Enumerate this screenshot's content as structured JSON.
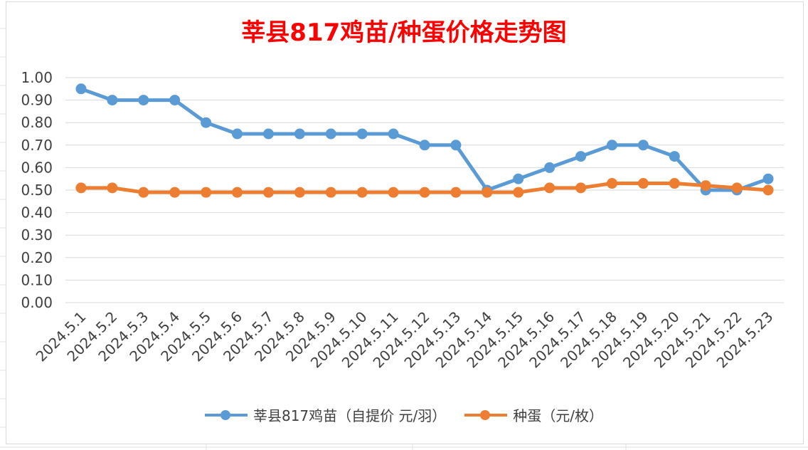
{
  "chart_data": {
    "type": "line",
    "title": "莘县817鸡苗/种蛋价格走势图",
    "xlabel": "",
    "ylabel": "",
    "ylim": [
      0,
      1.0
    ],
    "yticks": [
      "0.00",
      "0.10",
      "0.20",
      "0.30",
      "0.40",
      "0.50",
      "0.60",
      "0.70",
      "0.80",
      "0.90",
      "1.00"
    ],
    "categories": [
      "2024.5.1",
      "2024.5.2",
      "2024.5.3",
      "2024.5.4",
      "2024.5.5",
      "2024.5.6",
      "2024.5.7",
      "2024.5.8",
      "2024.5.9",
      "2024.5.10",
      "2024.5.11",
      "2024.5.12",
      "2024.5.13",
      "2024.5.14",
      "2024.5.15",
      "2024.5.16",
      "2024.5.17",
      "2024.5.18",
      "2024.5.19",
      "2024.5.20",
      "2024.5.21",
      "2024.5.22",
      "2024.5.23"
    ],
    "series": [
      {
        "name": "莘县817鸡苗（自提价 元/羽）",
        "color": "#5b9bd5",
        "values": [
          0.95,
          0.9,
          0.9,
          0.9,
          0.8,
          0.75,
          0.75,
          0.75,
          0.75,
          0.75,
          0.75,
          0.7,
          0.7,
          0.5,
          0.55,
          0.6,
          0.65,
          0.7,
          0.7,
          0.65,
          0.5,
          0.5,
          0.55
        ]
      },
      {
        "name": "种蛋（元/枚）",
        "color": "#ed7d31",
        "values": [
          0.51,
          0.51,
          0.49,
          0.49,
          0.49,
          0.49,
          0.49,
          0.49,
          0.49,
          0.49,
          0.49,
          0.49,
          0.49,
          0.49,
          0.49,
          0.51,
          0.51,
          0.53,
          0.53,
          0.53,
          0.52,
          0.51,
          0.5
        ]
      }
    ],
    "grid": true,
    "legend": "bottom"
  }
}
